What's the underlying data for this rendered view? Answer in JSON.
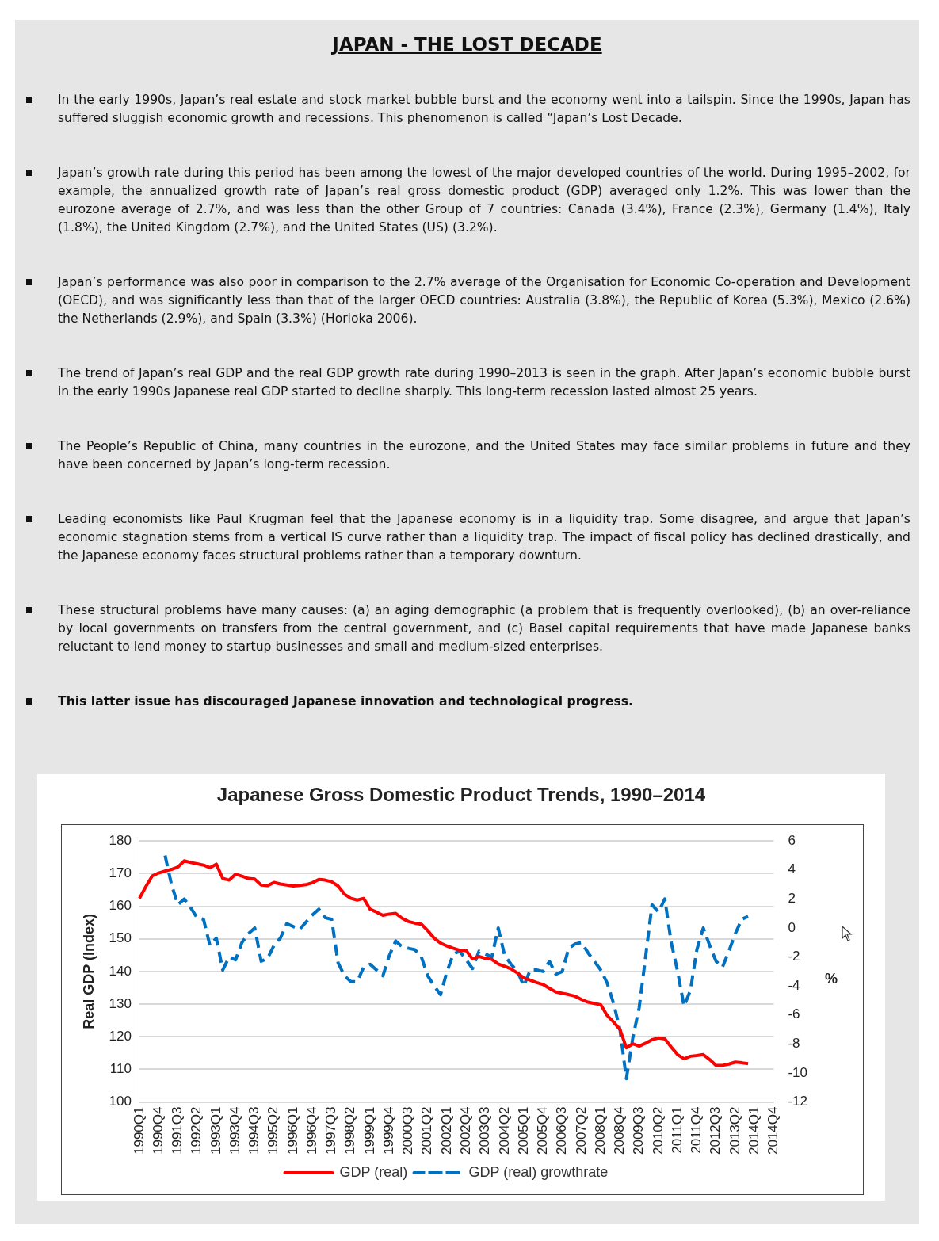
{
  "chart_data": {
    "type": "line",
    "title": "Japanese Gross Domestic Product Trends, 1990–2014",
    "ylabel": "Real GDP (Index)",
    "y2label": "%",
    "annotations": [
      "JAPAN - THE LOST DECADE",
      "In the early 1990s, Japan’s real estate and stock market bubble burst and the economy went into a tailspin. Since the 1990s, Japan has suffered sluggish economic growth and recessions. This phenomenon is called “Japan’s Lost Decade.",
      "Japan’s growth rate during this period has been among the lowest of the major developed countries of the world. During 1995–2002, for example, the annualized growth rate of Japan’s real gross domestic product (GDP) averaged only 1.2%. This was lower than the eurozone average of 2.7%, and was less than the other Group of 7 countries: Canada (3.4%), France (2.3%), Germany (1.4%), Italy (1.8%), the United Kingdom (2.7%), and the United States (US) (3.2%).",
      "Japan’s performance was also poor in comparison to the 2.7% average of the Organisation for Economic Co-operation and Development (OECD), and was significantly less than that of the larger OECD countries: Australia (3.8%), the Republic of Korea (5.3%), Mexico (2.6%) the Netherlands (2.9%), and Spain (3.3%) (Horioka 2006).",
      "The trend of Japan’s real GDP and the real GDP growth rate during 1990–2013 is seen in the graph. After Japan’s economic bubble burst in the early 1990s Japanese real GDP started to decline sharply. This long-term recession lasted almost 25 years.",
      "The People’s Republic of China, many countries in the eurozone, and the United States may face similar problems in future and they have been concerned by Japan’s long-term recession.",
      "Leading economists like Paul Krugman feel that the Japanese economy is in a liquidity trap. Some disagree, and argue that Japan’s economic stagnation stems from a vertical IS curve rather than a liquidity trap. The impact of fiscal policy has declined drastically, and the Japanese economy faces structural problems rather than a temporary downturn.",
      "These structural problems have many causes: (a) an aging demographic (a problem that is frequently overlooked), (b) an over-reliance by local governments on transfers from the central government, and (c) Basel capital requirements that have made Japanese banks reluctant to lend money to startup businesses and small and medium-sized enterprises.",
      "This latter issue has discouraged Japanese innovation and technological progress."
    ],
    "categories": [
      "1990Q1",
      null,
      null,
      "1990Q4",
      null,
      null,
      "1991Q3",
      null,
      null,
      "1992Q2",
      null,
      null,
      "1993Q1",
      null,
      null,
      "1993Q4",
      null,
      null,
      "1994Q3",
      null,
      null,
      "1995Q2",
      null,
      null,
      "1996Q1",
      null,
      null,
      "1996Q4",
      null,
      null,
      "1997Q3",
      null,
      null,
      "1998Q2",
      null,
      null,
      "1999Q1",
      null,
      null,
      "1999Q4",
      null,
      null,
      "2000Q3",
      null,
      null,
      "2001Q2",
      null,
      null,
      "2002Q1",
      null,
      null,
      "2002Q4",
      null,
      null,
      "2003Q3",
      null,
      null,
      "2004Q2",
      null,
      null,
      "2005Q1",
      null,
      null,
      "2005Q4",
      null,
      null,
      "2006Q3",
      null,
      null,
      "2007Q2",
      null,
      null,
      "2008Q1",
      null,
      null,
      "2008Q4",
      null,
      null,
      "2009Q3",
      null,
      null,
      "2010Q2",
      null,
      null,
      "2011Q1",
      null,
      null,
      "2011Q4",
      null,
      null,
      "2012Q3",
      null,
      null,
      "2013Q2",
      null,
      null,
      "2014Q1",
      null,
      null,
      "2014Q4"
    ],
    "series": [
      {
        "name": "GDP (real)",
        "color": "#ff0000",
        "line_style": "solid",
        "values": [
          162.4,
          166,
          169.3,
          170.2,
          170.8,
          171.3,
          172,
          173.9,
          173.4,
          173,
          172.6,
          171.8,
          172.9,
          168.5,
          168,
          169.8,
          169.2,
          168.5,
          168.3,
          166.5,
          166.3,
          167.3,
          166.8,
          166.5,
          166.2,
          166.4,
          166.6,
          167.2,
          168.2,
          168,
          167.5,
          166.2,
          163.7,
          162.4,
          161.9,
          162.4,
          159.1,
          158.2,
          157.2,
          157.6,
          157.8,
          156.3,
          155.3,
          154.8,
          154.5,
          152.5,
          150.2,
          148.7,
          147.8,
          147.1,
          146.5,
          146.4,
          143.8,
          144.6,
          144,
          143.7,
          142.3,
          141.6,
          140.8,
          139.5,
          138,
          137.3,
          136.6,
          136,
          134.8,
          133.7,
          133.3,
          132.9,
          132.4,
          131.4,
          130.6,
          130.2,
          129.8,
          126.5,
          124.5,
          122.2,
          116.6,
          117.8,
          117.1,
          118,
          119.1,
          119.6,
          119.3,
          116.8,
          114.5,
          113.2,
          114,
          114.2,
          114.5,
          113,
          111.2,
          111.2,
          111.6,
          112.2,
          112,
          111.7,
          null,
          null,
          null,
          null
        ]
      },
      {
        "name": "GDP (real) growthrate",
        "color": "#0070c0",
        "line_style": "dashed",
        "axis": "y2",
        "values": [
          null,
          null,
          null,
          null,
          5.0,
          3.0,
          1.6,
          2.0,
          1.4,
          0.7,
          0.6,
          -1.2,
          -0.7,
          -2.9,
          -2.0,
          -2.2,
          -1.0,
          -0.4,
          0.0,
          -2.3,
          -2.1,
          -1.2,
          -0.7,
          0.3,
          0.1,
          -0.1,
          0.4,
          0.9,
          1.3,
          0.7,
          0.6,
          -2.4,
          -3.3,
          -3.7,
          -3.7,
          -2.7,
          -2.5,
          -2.9,
          -3.3,
          -1.9,
          -0.9,
          -1.3,
          -1.4,
          -1.5,
          -2.0,
          -3.3,
          -4.0,
          -4.6,
          -3.0,
          -1.8,
          -1.6,
          -2.2,
          -2.8,
          -1.6,
          -1.8,
          -2.0,
          0.0,
          -1.9,
          -2.5,
          -3.0,
          -4.0,
          -2.9,
          -2.9,
          -3.0,
          -2.3,
          -3.2,
          -3.0,
          -1.4,
          -1.1,
          -1.0,
          -1.7,
          -2.3,
          -2.9,
          -3.8,
          -5.2,
          -7.0,
          -10.4,
          -7.6,
          -5.5,
          -2.0,
          1.6,
          1.1,
          2.0,
          -1.0,
          -3.0,
          -5.4,
          -4.3,
          -1.5,
          0.0,
          -1.2,
          -2.3,
          -2.7,
          -1.6,
          -0.4,
          0.6,
          0.8,
          null,
          null,
          null,
          null
        ]
      }
    ],
    "ylim": [
      100,
      180
    ],
    "yticks": [
      100,
      110,
      120,
      130,
      140,
      150,
      160,
      170,
      180
    ],
    "y2lim": [
      -12,
      6
    ],
    "y2ticks": [
      -12,
      -10,
      -8,
      -6,
      -4,
      -2,
      0,
      2,
      4,
      6
    ],
    "grid": "y",
    "legend": "bottom",
    "marker": "none"
  }
}
